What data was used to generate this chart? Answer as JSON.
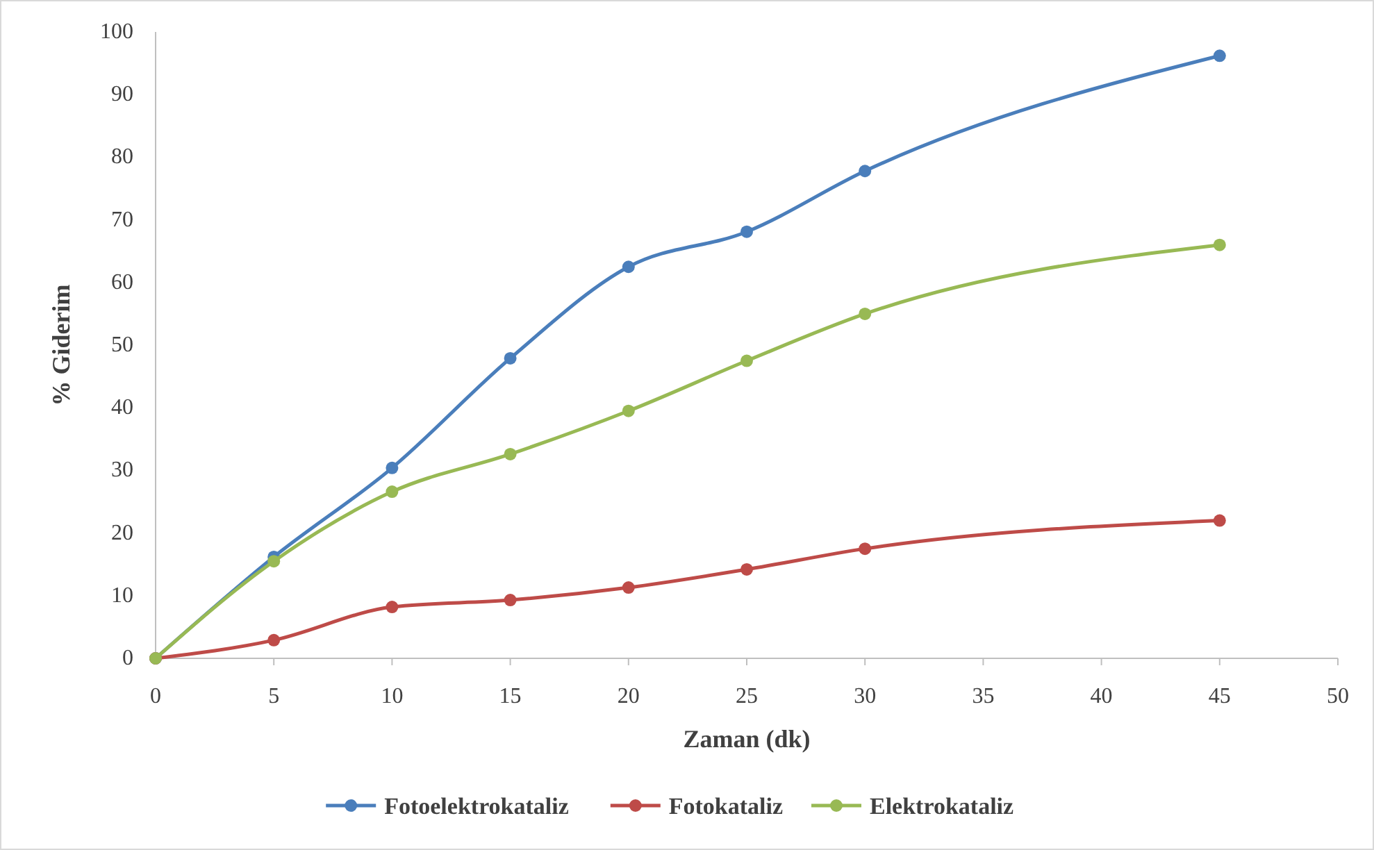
{
  "chart_data": {
    "type": "line",
    "xlabel": "Zaman (dk)",
    "ylabel": "% Giderim",
    "x": [
      0,
      5,
      10,
      15,
      20,
      25,
      30,
      45
    ],
    "series": [
      {
        "name": "Fotoelektrokataliz",
        "color": "#4a7ebb",
        "values": [
          0,
          16.2,
          30.4,
          47.9,
          62.5,
          68.1,
          77.8,
          96.2
        ]
      },
      {
        "name": "Fotokataliz",
        "color": "#be4b48",
        "values": [
          0,
          2.9,
          8.2,
          9.3,
          11.3,
          14.2,
          17.5,
          22
        ]
      },
      {
        "name": "Elektrokataliz",
        "color": "#98b954",
        "values": [
          0,
          15.5,
          26.6,
          32.6,
          39.5,
          47.5,
          55,
          66
        ]
      }
    ],
    "xlim": [
      0,
      50
    ],
    "xticks": [
      0,
      5,
      10,
      15,
      20,
      25,
      30,
      35,
      40,
      45,
      50
    ],
    "ylim": [
      0,
      100
    ],
    "yticks": [
      0,
      10,
      20,
      30,
      40,
      50,
      60,
      70,
      80,
      90,
      100
    ],
    "grid": false,
    "legend": "bottom",
    "marker": "circle",
    "line_style": "solid"
  }
}
